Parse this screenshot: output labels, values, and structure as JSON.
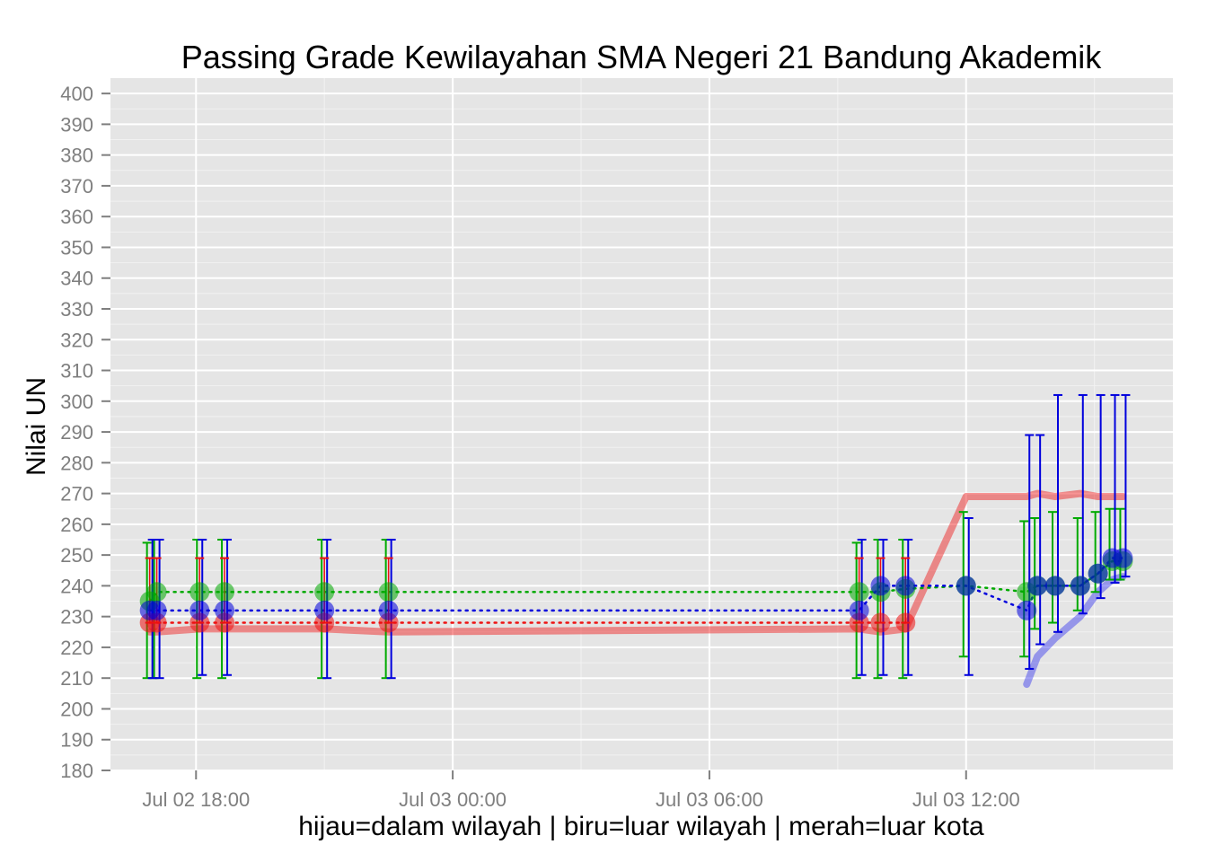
{
  "chart_data": {
    "type": "line",
    "title": "Passing Grade Kewilayahan SMA Negeri 21 Bandung Akademik",
    "xlabel": "hijau=dalam wilayah | biru=luar wilayah | merah=luar kota",
    "ylabel": "Nilai UN",
    "ylim": [
      180,
      405
    ],
    "xlim": [
      "2014-07-02T16:00",
      "2014-07-03T16:50"
    ],
    "y_ticks": [
      180,
      190,
      200,
      210,
      220,
      230,
      240,
      250,
      260,
      270,
      280,
      290,
      300,
      310,
      320,
      330,
      340,
      350,
      360,
      370,
      380,
      390,
      400
    ],
    "x_ticks": [
      {
        "t": "2014-07-02T18:00",
        "label": "Jul 02 18:00"
      },
      {
        "t": "2014-07-03T00:00",
        "label": "Jul 03 00:00"
      },
      {
        "t": "2014-07-03T06:00",
        "label": "Jul 03 06:00"
      },
      {
        "t": "2014-07-03T12:00",
        "label": "Jul 03 12:00"
      }
    ],
    "grid": true,
    "colors": {
      "dalam_wilayah": "#00aa00",
      "luar_wilayah": "#0000dd",
      "luar_kota": "#ee1111",
      "panel_background": "#e5e5e5",
      "grid": "#ffffff"
    },
    "series": [
      {
        "key": "dalam_wilayah",
        "color": "#00aa00",
        "points": [
          {
            "t": "2014-07-02T16:55",
            "y": 235,
            "ymin": 210,
            "ymax": 254
          },
          {
            "t": "2014-07-02T17:05",
            "y": 238,
            "ymin": 210,
            "ymax": 255
          },
          {
            "t": "2014-07-02T18:05",
            "y": 238,
            "ymin": 210,
            "ymax": 255
          },
          {
            "t": "2014-07-02T18:40",
            "y": 238,
            "ymin": 210,
            "ymax": 255
          },
          {
            "t": "2014-07-02T21:00",
            "y": 238,
            "ymin": 210,
            "ymax": 255
          },
          {
            "t": "2014-07-02T22:30",
            "y": 238,
            "ymin": 210,
            "ymax": 255
          },
          {
            "t": "2014-07-03T09:30",
            "y": 238,
            "ymin": 210,
            "ymax": 254
          },
          {
            "t": "2014-07-03T10:00",
            "y": 238,
            "ymin": 210,
            "ymax": 255
          },
          {
            "t": "2014-07-03T10:35",
            "y": 239,
            "ymin": 210,
            "ymax": 255
          },
          {
            "t": "2014-07-03T12:00",
            "y": 240,
            "ymin": 217,
            "ymax": 264
          },
          {
            "t": "2014-07-03T13:25",
            "y": 238,
            "ymin": 217,
            "ymax": 261
          },
          {
            "t": "2014-07-03T13:40",
            "y": 240,
            "ymin": 226,
            "ymax": 262
          },
          {
            "t": "2014-07-03T14:05",
            "y": 240,
            "ymin": 228,
            "ymax": 264
          },
          {
            "t": "2014-07-03T14:40",
            "y": 240,
            "ymin": 232,
            "ymax": 262
          },
          {
            "t": "2014-07-03T15:05",
            "y": 244,
            "ymin": 238,
            "ymax": 264
          },
          {
            "t": "2014-07-03T15:25",
            "y": 248,
            "ymin": 242,
            "ymax": 265
          },
          {
            "t": "2014-07-03T15:40",
            "y": 248,
            "ymin": 242,
            "ymax": 265
          }
        ]
      },
      {
        "key": "luar_wilayah",
        "color": "#0000dd",
        "points": [
          {
            "t": "2014-07-02T16:55",
            "y": 232,
            "ymin": 210,
            "ymax": 255
          },
          {
            "t": "2014-07-02T17:05",
            "y": 232,
            "ymin": 210,
            "ymax": 255
          },
          {
            "t": "2014-07-02T18:05",
            "y": 232,
            "ymin": 211,
            "ymax": 255
          },
          {
            "t": "2014-07-02T18:40",
            "y": 232,
            "ymin": 211,
            "ymax": 255
          },
          {
            "t": "2014-07-02T21:00",
            "y": 232,
            "ymin": 210,
            "ymax": 255
          },
          {
            "t": "2014-07-02T22:30",
            "y": 232,
            "ymin": 210,
            "ymax": 255
          },
          {
            "t": "2014-07-03T09:30",
            "y": 232,
            "ymin": 211,
            "ymax": 255
          },
          {
            "t": "2014-07-03T10:00",
            "y": 240,
            "ymin": 211,
            "ymax": 255
          },
          {
            "t": "2014-07-03T10:35",
            "y": 240,
            "ymin": 211,
            "ymax": 255
          },
          {
            "t": "2014-07-03T12:00",
            "y": 240,
            "ymin": 211,
            "ymax": 262
          },
          {
            "t": "2014-07-03T13:25",
            "y": 232,
            "ymin": 213,
            "ymax": 289
          },
          {
            "t": "2014-07-03T13:40",
            "y": 240,
            "ymin": 221,
            "ymax": 289
          },
          {
            "t": "2014-07-03T14:05",
            "y": 240,
            "ymin": 225,
            "ymax": 302
          },
          {
            "t": "2014-07-03T14:40",
            "y": 240,
            "ymin": 231,
            "ymax": 302
          },
          {
            "t": "2014-07-03T15:05",
            "y": 244,
            "ymin": 236,
            "ymax": 302
          },
          {
            "t": "2014-07-03T15:25",
            "y": 249,
            "ymin": 241,
            "ymax": 302
          },
          {
            "t": "2014-07-03T15:40",
            "y": 249,
            "ymin": 243,
            "ymax": 302
          }
        ]
      },
      {
        "key": "luar_kota",
        "color": "#ee1111",
        "points": [
          {
            "t": "2014-07-02T16:55",
            "y": 228,
            "ymin": 228,
            "ymax": 249
          },
          {
            "t": "2014-07-02T17:05",
            "y": 228,
            "ymin": 228,
            "ymax": 249
          },
          {
            "t": "2014-07-02T18:05",
            "y": 228,
            "ymin": 228,
            "ymax": 249
          },
          {
            "t": "2014-07-02T18:40",
            "y": 228,
            "ymin": 228,
            "ymax": 249
          },
          {
            "t": "2014-07-02T21:00",
            "y": 228,
            "ymin": 228,
            "ymax": 249
          },
          {
            "t": "2014-07-02T22:30",
            "y": 228,
            "ymin": 228,
            "ymax": 249
          },
          {
            "t": "2014-07-03T09:30",
            "y": 228,
            "ymin": 228,
            "ymax": 249
          },
          {
            "t": "2014-07-03T10:00",
            "y": 228,
            "ymin": 228,
            "ymax": 249
          },
          {
            "t": "2014-07-03T10:35",
            "y": 228,
            "ymin": 228,
            "ymax": 249
          }
        ]
      }
    ],
    "threshold_lines": [
      {
        "key": "luar_kota",
        "color": "#ee1111",
        "points": [
          {
            "t": "2014-07-02T16:55",
            "y": 225
          },
          {
            "t": "2014-07-02T17:05",
            "y": 225
          },
          {
            "t": "2014-07-02T18:05",
            "y": 226
          },
          {
            "t": "2014-07-02T21:00",
            "y": 226
          },
          {
            "t": "2014-07-02T22:30",
            "y": 225
          },
          {
            "t": "2014-07-03T09:30",
            "y": 226
          },
          {
            "t": "2014-07-03T10:00",
            "y": 225
          },
          {
            "t": "2014-07-03T10:35",
            "y": 226
          },
          {
            "t": "2014-07-03T12:00",
            "y": 269
          },
          {
            "t": "2014-07-03T13:25",
            "y": 269
          },
          {
            "t": "2014-07-03T13:40",
            "y": 270
          },
          {
            "t": "2014-07-03T14:05",
            "y": 269
          },
          {
            "t": "2014-07-03T14:40",
            "y": 270
          },
          {
            "t": "2014-07-03T15:05",
            "y": 269
          },
          {
            "t": "2014-07-03T15:25",
            "y": 269
          },
          {
            "t": "2014-07-03T15:40",
            "y": 269
          }
        ]
      },
      {
        "key": "luar_wilayah",
        "color": "#3333ee",
        "points": [
          {
            "t": "2014-07-03T13:25",
            "y": 208
          },
          {
            "t": "2014-07-03T13:40",
            "y": 217
          },
          {
            "t": "2014-07-03T14:05",
            "y": 223
          },
          {
            "t": "2014-07-03T14:40",
            "y": 230
          },
          {
            "t": "2014-07-03T15:05",
            "y": 238
          },
          {
            "t": "2014-07-03T15:25",
            "y": 242
          },
          {
            "t": "2014-07-03T15:40",
            "y": 243
          }
        ]
      }
    ]
  }
}
